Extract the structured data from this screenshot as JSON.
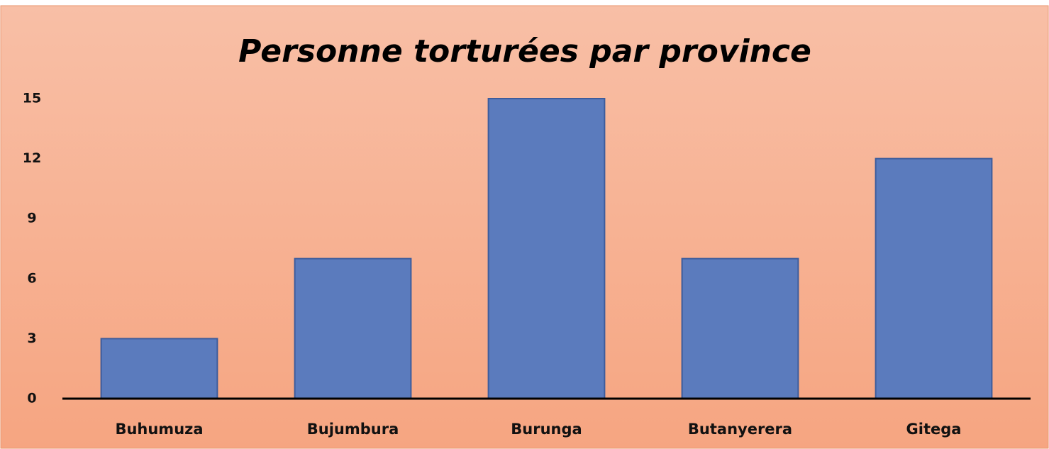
{
  "chart_data": {
    "type": "bar",
    "title": "Personne torturées par province",
    "categories": [
      "Buhumuza",
      "Bujumbura",
      "Burunga",
      "Butanyerera",
      "Gitega"
    ],
    "values": [
      3,
      7,
      15,
      7,
      12
    ],
    "color": "#5b7bbd",
    "ylim": [
      0,
      15
    ],
    "yticks": [
      0,
      3,
      6,
      9,
      12,
      15
    ],
    "grid": false
  }
}
